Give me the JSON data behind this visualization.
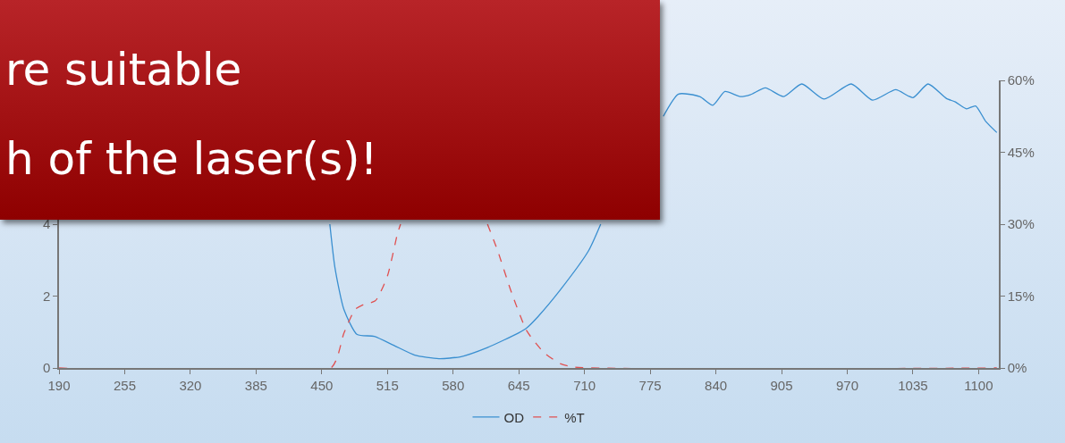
{
  "chart_data": {
    "type": "line",
    "annotations": [
      "re suitable",
      "h of the laser(s)!"
    ],
    "xlim": [
      190,
      1120
    ],
    "xticks": [
      190,
      255,
      320,
      385,
      450,
      515,
      580,
      645,
      710,
      775,
      840,
      905,
      970,
      1035,
      1100
    ],
    "ylim": [
      0,
      8
    ],
    "yticks": [
      0,
      2,
      4
    ],
    "y2lim": [
      0,
      60
    ],
    "y2ticks": [
      {
        "value": 0,
        "label": "0%"
      },
      {
        "value": 15,
        "label": "15%"
      },
      {
        "value": 30,
        "label": "30%"
      },
      {
        "value": 45,
        "label": "45%"
      },
      {
        "value": 60,
        "label": "60%"
      }
    ],
    "grid": false,
    "legend": "bottom",
    "marker": "none",
    "series": [
      {
        "name": "OD",
        "color": "#3a8fd0",
        "line_style": "solid",
        "x": [
          458,
          463,
          472,
          485,
          502,
          522,
          542,
          566,
          587,
          614,
          645,
          653,
          664,
          686,
          714,
          726,
          750,
          788,
          803,
          824,
          837,
          849,
          864,
          874,
          889,
          907,
          925,
          947,
          974,
          995,
          1018,
          1035,
          1050,
          1068,
          1077,
          1088,
          1097,
          1107,
          1118
        ],
        "values": [
          4.0,
          2.8,
          1.62,
          0.93,
          0.88,
          0.62,
          0.36,
          0.26,
          0.31,
          0.57,
          0.98,
          1.12,
          1.43,
          2.17,
          3.26,
          4.0,
          null,
          7.0,
          7.62,
          7.55,
          7.31,
          7.69,
          7.55,
          7.6,
          7.79,
          7.55,
          7.9,
          7.48,
          7.9,
          7.45,
          7.74,
          7.52,
          7.9,
          7.5,
          7.4,
          7.21,
          7.29,
          6.86,
          6.55
        ]
      },
      {
        "name": "%T",
        "color": "#e05050",
        "line_style": "dashed",
        "axis": "y2",
        "x": [
          190,
          459,
          472,
          483,
          492,
          503,
          515,
          525,
          528,
          570,
          614,
          624,
          638,
          653,
          670,
          686,
          700,
          1118
        ],
        "values": [
          0,
          0,
          7.3,
          12.2,
          13.3,
          14.0,
          19.2,
          28.1,
          30,
          null,
          30,
          24.5,
          15.6,
          7.7,
          3.2,
          0.9,
          0.2,
          0
        ]
      }
    ]
  }
}
